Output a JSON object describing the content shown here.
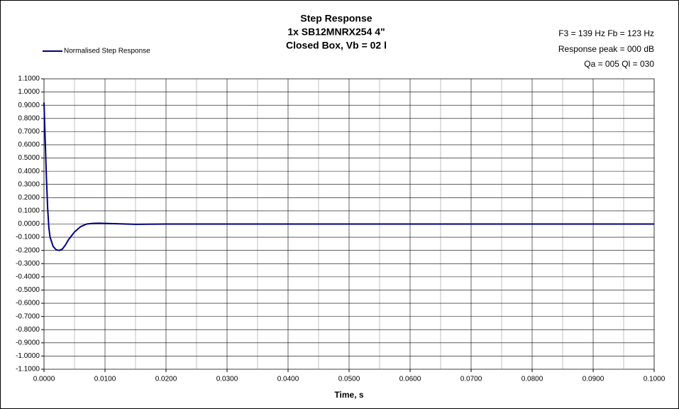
{
  "chart_data": {
    "type": "line",
    "title": [
      "Step Response",
      "1x SB12MNRX254 4\"",
      "Closed Box, Vb = 02 l"
    ],
    "annotations": [
      "F3 = 139 Hz  Fb = 123 Hz",
      "Response peak = 000 dB",
      "Qa = 005   Ql = 030"
    ],
    "x_label": "Time, s",
    "x": [
      0,
      0.0002,
      0.0004,
      0.0006,
      0.0008,
      0.001,
      0.0015,
      0.002,
      0.0025,
      0.003,
      0.0035,
      0.004,
      0.005,
      0.006,
      0.007,
      0.008,
      0.009,
      0.01,
      0.012,
      0.015,
      0.02,
      0.1
    ],
    "series": [
      {
        "name": "Normalised Step Response",
        "color": "#000080",
        "values": [
          0.92,
          0.63,
          0.35,
          0.12,
          -0.03,
          -0.1,
          -0.17,
          -0.195,
          -0.2,
          -0.19,
          -0.16,
          -0.12,
          -0.06,
          -0.02,
          0.0,
          0.005,
          0.006,
          0.005,
          0.002,
          -0.002,
          0.0,
          0.0
        ]
      }
    ],
    "xlim": [
      0,
      0.1
    ],
    "xticks": [
      {
        "value": 0,
        "label": "0.0000"
      },
      {
        "value": 0.01,
        "label": "0.0100"
      },
      {
        "value": 0.02,
        "label": "0.0200"
      },
      {
        "value": 0.03,
        "label": "0.0300"
      },
      {
        "value": 0.04,
        "label": "0.0400"
      },
      {
        "value": 0.05,
        "label": "0.0500"
      },
      {
        "value": 0.06,
        "label": "0.0600"
      },
      {
        "value": 0.07,
        "label": "0.0700"
      },
      {
        "value": 0.08,
        "label": "0.0800"
      },
      {
        "value": 0.09,
        "label": "0.0900"
      },
      {
        "value": 0.1,
        "label": "0.1000"
      }
    ],
    "xminorticks": [
      0.005,
      0.015,
      0.025,
      0.035,
      0.045,
      0.055,
      0.065,
      0.075,
      0.085,
      0.095
    ],
    "ylim": [
      -1.1,
      1.1
    ],
    "yticks": [
      {
        "value": 1.1,
        "label": "1.1000"
      },
      {
        "value": 1.0,
        "label": "1.0000"
      },
      {
        "value": 0.9,
        "label": "0.9000"
      },
      {
        "value": 0.8,
        "label": "0.8000"
      },
      {
        "value": 0.7,
        "label": "0.7000"
      },
      {
        "value": 0.6,
        "label": "0.6000"
      },
      {
        "value": 0.5,
        "label": "0.5000"
      },
      {
        "value": 0.4,
        "label": "0.4000"
      },
      {
        "value": 0.3,
        "label": "0.3000"
      },
      {
        "value": 0.2,
        "label": "0.2000"
      },
      {
        "value": 0.1,
        "label": "0.1000"
      },
      {
        "value": 0,
        "label": "0.0000"
      },
      {
        "value": -0.1,
        "label": "-0.1000"
      },
      {
        "value": -0.2,
        "label": "-0.2000"
      },
      {
        "value": -0.3,
        "label": "-0.3000"
      },
      {
        "value": -0.4,
        "label": "-0.4000"
      },
      {
        "value": -0.5,
        "label": "-0.5000"
      },
      {
        "value": -0.6,
        "label": "-0.6000"
      },
      {
        "value": -0.7,
        "label": "-0.7000"
      },
      {
        "value": -0.8,
        "label": "-0.8000"
      },
      {
        "value": -0.9,
        "label": "-0.9000"
      },
      {
        "value": -1.0,
        "label": "-1.0000"
      },
      {
        "value": -1.1,
        "label": "-1.1000"
      }
    ],
    "grid": true,
    "legend": "top-left"
  }
}
